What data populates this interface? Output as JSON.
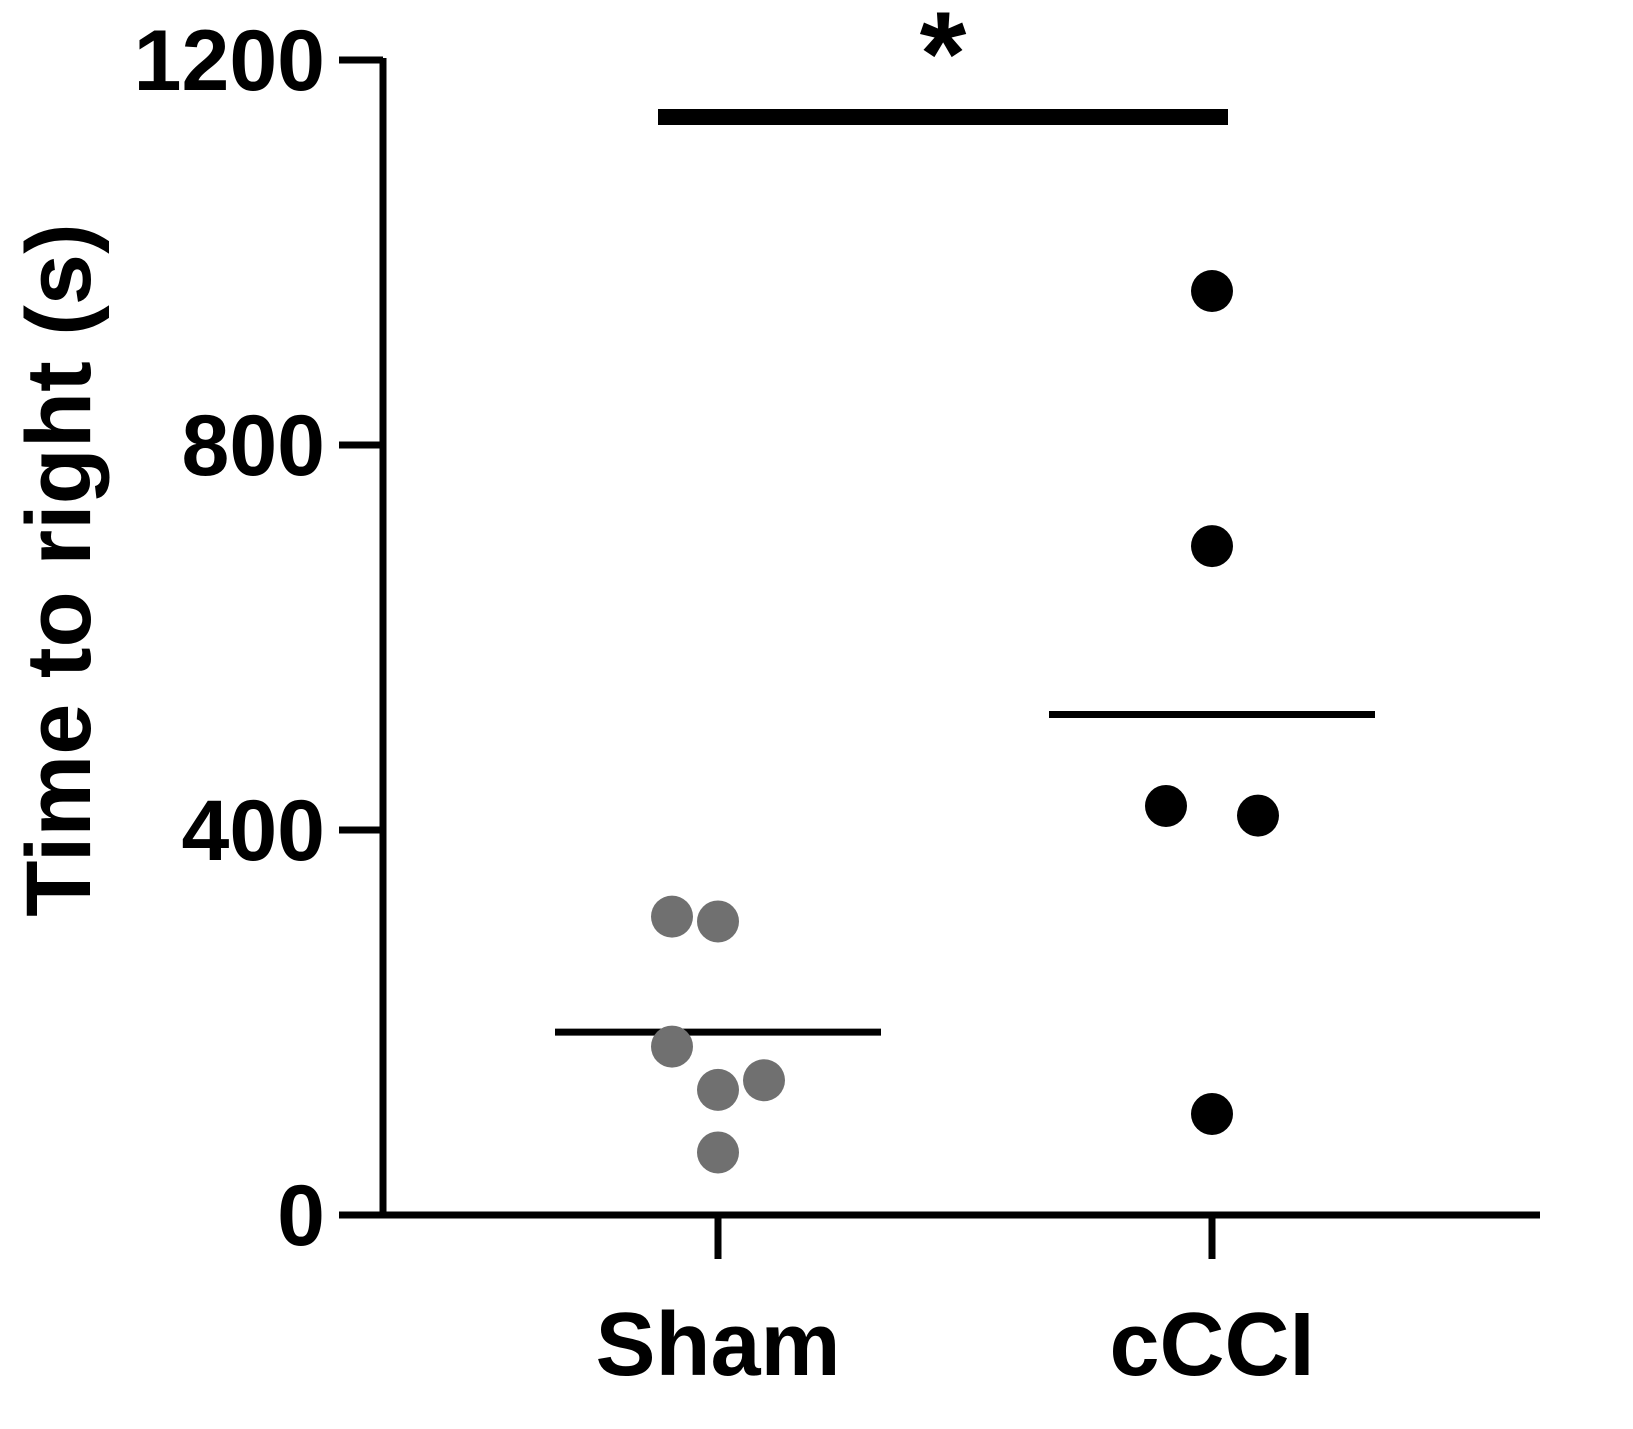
{
  "chart_data": {
    "type": "scatter",
    "title": "",
    "xlabel": "",
    "ylabel": "Time to right (s)",
    "ylim": [
      0,
      1200
    ],
    "yticks": [
      0,
      400,
      800,
      1200
    ],
    "grid": false,
    "categories": [
      "Sham",
      "cCCI"
    ],
    "series": [
      {
        "category": "Sham",
        "color": "#707070",
        "mean": 190,
        "points": [
          {
            "offset": -1,
            "y": 310
          },
          {
            "offset": 0,
            "y": 305
          },
          {
            "offset": -1,
            "y": 175
          },
          {
            "offset": 0,
            "y": 130
          },
          {
            "offset": 1,
            "y": 140
          },
          {
            "offset": 0,
            "y": 65
          }
        ]
      },
      {
        "category": "cCCI",
        "color": "#000000",
        "mean": 520,
        "points": [
          {
            "offset": 0,
            "y": 960
          },
          {
            "offset": 0,
            "y": 695
          },
          {
            "offset": -1,
            "y": 425
          },
          {
            "offset": 1,
            "y": 415
          },
          {
            "offset": 0,
            "y": 105
          }
        ]
      }
    ],
    "significance": {
      "from": "Sham",
      "to": "cCCI",
      "label": "*"
    }
  }
}
